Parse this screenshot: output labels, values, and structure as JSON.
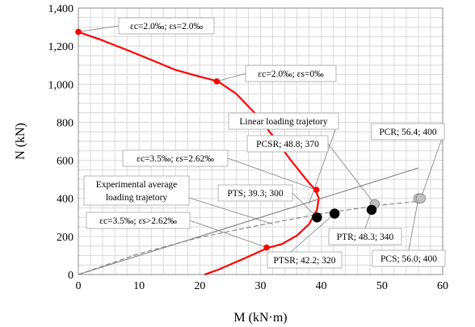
{
  "chart_data": {
    "type": "line",
    "xlabel": "M (kN·m)",
    "ylabel": "N (kN)",
    "xlim": [
      0,
      60
    ],
    "ylim": [
      0,
      1400
    ],
    "xticks": [
      "0",
      "10",
      "20",
      "30",
      "40",
      "50",
      "60"
    ],
    "yticks": [
      "0",
      "200",
      "400",
      "600",
      "800",
      "1,000",
      "1,200",
      "1,400"
    ],
    "grid": true,
    "colors": {
      "interaction_curve": "#ff0000",
      "linear_trajectory": "#808080",
      "experimental_trajectory": "#808080",
      "specimen_dark": "#000000",
      "specimen_light": "#bfbfbf"
    },
    "series": [
      {
        "key": "interaction_curve",
        "style": "solid",
        "x": [
          0,
          4,
          8,
          12,
          16,
          20,
          23.0,
          26,
          29,
          32,
          35,
          37.5,
          39.0,
          39.6,
          39.3,
          38.0,
          36,
          33.5,
          31.2,
          27,
          23,
          20.8
        ],
        "y": [
          1275,
          1230,
          1180,
          1128,
          1075,
          1040,
          1015,
          950,
          850,
          730,
          600,
          500,
          445,
          400,
          340,
          265,
          205,
          160,
          140,
          80,
          25,
          0
        ]
      },
      {
        "key": "linear_trajectory",
        "style": "solid",
        "x": [
          0,
          56
        ],
        "y": [
          0,
          560
        ]
      },
      {
        "key": "experimental_trajectory",
        "style": "dashed",
        "x": [
          0,
          10,
          20,
          30,
          40,
          50,
          56
        ],
        "y": [
          0,
          110,
          195,
          260,
          320,
          365,
          385
        ]
      }
    ],
    "key_points": [
      {
        "x": 0,
        "y": 1275
      },
      {
        "x": 22.8,
        "y": 1015
      },
      {
        "x": 39.2,
        "y": 445
      },
      {
        "x": 31.0,
        "y": 142
      }
    ],
    "specimens": [
      {
        "label": "PTSR; 42.2; 320",
        "x": 42.2,
        "y": 320,
        "fill": "dark"
      },
      {
        "label": "PTS; 39.3; 300",
        "x": 39.3,
        "y": 300,
        "fill": "dark"
      },
      {
        "label": "PTR; 48.3; 340",
        "x": 48.3,
        "y": 340,
        "fill": "dark"
      },
      {
        "label": "PCSR; 48.8; 370",
        "x": 48.8,
        "y": 370,
        "fill": "light"
      },
      {
        "label": "PCR; 56.4; 400",
        "x": 56.4,
        "y": 400,
        "fill": "light"
      },
      {
        "label": "PCS; 56.0; 400",
        "x": 56.0,
        "y": 400,
        "fill": "light"
      }
    ],
    "annotations": [
      {
        "text": "εc=2.0‰; εs=2.0‰",
        "target": [
          0,
          1275
        ]
      },
      {
        "text": "εc=2.0‰; εs=0‰",
        "target": [
          22.8,
          1015
        ]
      },
      {
        "text": "Linear loading trajetory",
        "target": [
          38,
          375
        ]
      },
      {
        "text": "εc=3.5‰; εs=2.62‰",
        "target": [
          39.2,
          445
        ]
      },
      {
        "text": "Experimental average",
        "text2": "loading trajetory",
        "target": [
          32,
          265
        ]
      },
      {
        "text": "εc=3.5‰; εs>2.62‰",
        "target": [
          31.0,
          142
        ]
      }
    ]
  }
}
